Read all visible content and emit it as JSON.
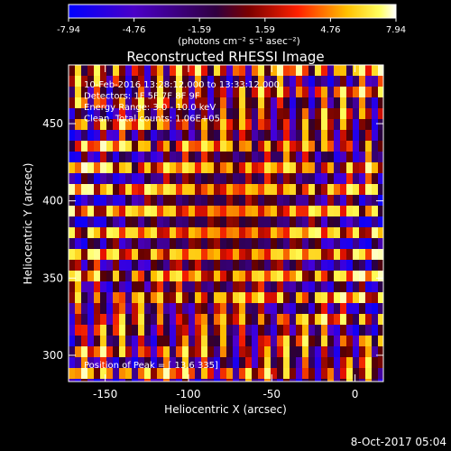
{
  "colorbar": {
    "ticks": [
      "-7.94",
      "-4.76",
      "-1.59",
      "1.59",
      "4.76",
      "7.94"
    ],
    "unit_label": "(photons cm⁻² s⁻¹ asec⁻²)"
  },
  "chart_data": {
    "type": "heatmap",
    "title": "Reconstructed RHESSI Image",
    "xlabel": "Heliocentric X (arcsec)",
    "ylabel": "Heliocentric Y (arcsec)",
    "xlim": [
      -172,
      17
    ],
    "ylim": [
      283,
      488
    ],
    "x_ticks": [
      -150,
      -100,
      -50,
      0
    ],
    "y_ticks": [
      300,
      350,
      400,
      450
    ],
    "color_range": [
      -7.94,
      7.94
    ],
    "colormap": [
      "#0000ff",
      "#000000",
      "#ff0000",
      "#ffff00",
      "#ffffff"
    ],
    "annotations": [
      "10-Feb-2016 13:28:12.000 to 13:33:12.000",
      "Detectors: 1F 5F 7F 8F 9F",
      "Energy Range: 3.0 - 10.0 keV",
      "Clean.   Total counts: 1.06E+05"
    ],
    "peak_text": "Position of Peak = [ 13.6  335]"
  },
  "footer": {
    "timestamp": "8-Oct-2017 05:04"
  }
}
